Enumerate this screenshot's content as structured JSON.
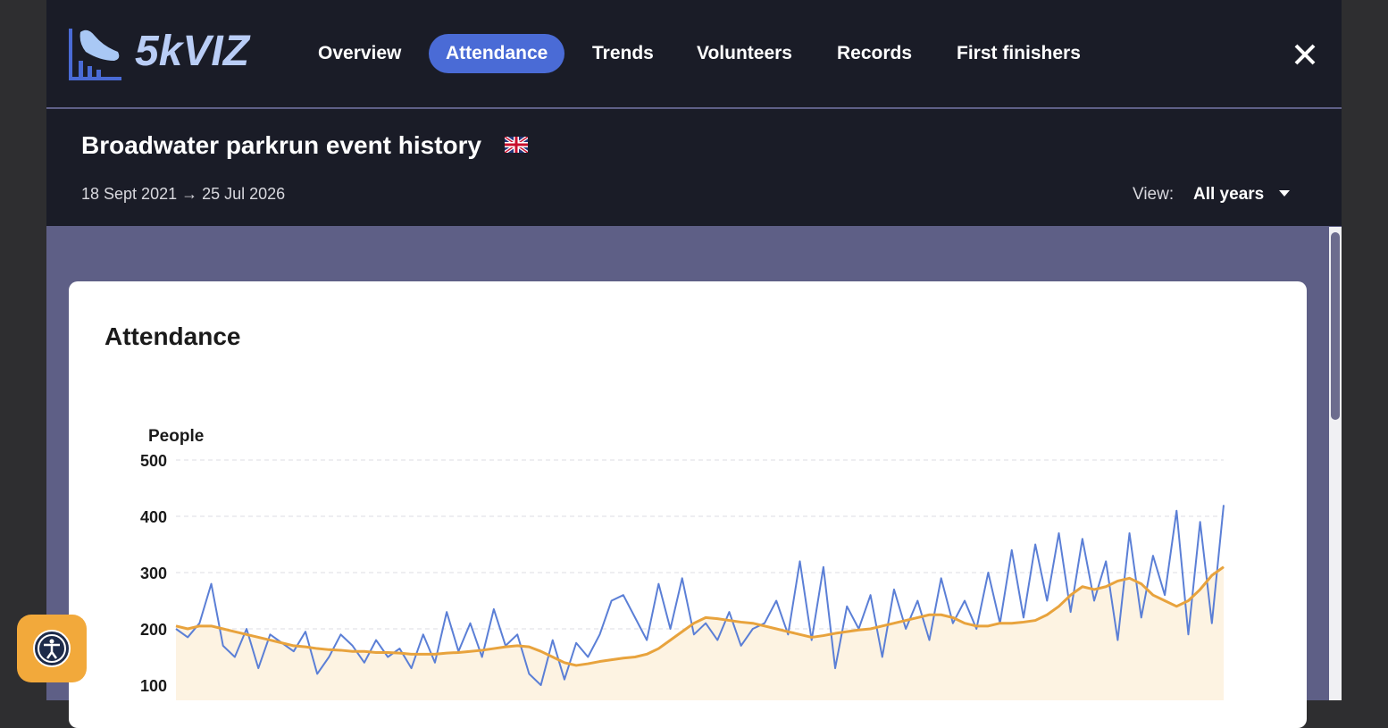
{
  "nav": {
    "logo": "5kVIZ",
    "items": [
      "Overview",
      "Attendance",
      "Trends",
      "Volunteers",
      "Records",
      "First finishers"
    ],
    "active": 1
  },
  "header": {
    "title": "Broadwater parkrun event history",
    "dates": "18 Sept 2021 → 25 Jul 2026",
    "view_label": "View:",
    "view_value": "All years"
  },
  "card": {
    "title": "Attendance"
  },
  "chart": {
    "type": "line",
    "ylabel": "People",
    "ylim": [
      0,
      500
    ],
    "yticks": [
      100,
      200,
      300,
      400,
      500
    ],
    "grid": true,
    "series": [
      {
        "color": "#5b7fd6",
        "values": [
          200,
          185,
          210,
          280,
          170,
          150,
          200,
          130,
          190,
          175,
          160,
          195,
          120,
          150,
          190,
          170,
          140,
          180,
          150,
          165,
          130,
          190,
          140,
          230,
          160,
          210,
          150,
          235,
          170,
          190,
          120,
          100,
          180,
          110,
          175,
          150,
          190,
          250,
          260,
          220,
          180,
          280,
          200,
          290,
          190,
          210,
          180,
          230,
          170,
          200,
          210,
          250,
          190,
          320,
          180,
          310,
          130,
          240,
          200,
          260,
          150,
          270,
          200,
          250,
          180,
          290,
          210,
          250,
          200,
          300,
          210,
          340,
          220,
          350,
          250,
          370,
          230,
          360,
          250,
          320,
          180,
          370,
          220,
          330,
          260,
          410,
          190,
          390,
          210,
          420
        ]
      },
      {
        "color": "#e8a33d",
        "fill": "#fdf3e2",
        "values": [
          205,
          200,
          205,
          205,
          200,
          195,
          190,
          185,
          180,
          175,
          170,
          168,
          165,
          163,
          162,
          160,
          160,
          158,
          158,
          157,
          155,
          155,
          155,
          157,
          158,
          160,
          162,
          165,
          168,
          170,
          168,
          160,
          150,
          140,
          135,
          138,
          142,
          145,
          148,
          150,
          155,
          165,
          180,
          195,
          210,
          220,
          218,
          215,
          212,
          210,
          205,
          200,
          195,
          190,
          185,
          188,
          192,
          195,
          198,
          200,
          205,
          210,
          215,
          220,
          225,
          225,
          220,
          210,
          205,
          205,
          210,
          210,
          212,
          215,
          225,
          240,
          260,
          275,
          270,
          275,
          285,
          290,
          280,
          260,
          250,
          240,
          250,
          270,
          295,
          310
        ]
      }
    ]
  }
}
